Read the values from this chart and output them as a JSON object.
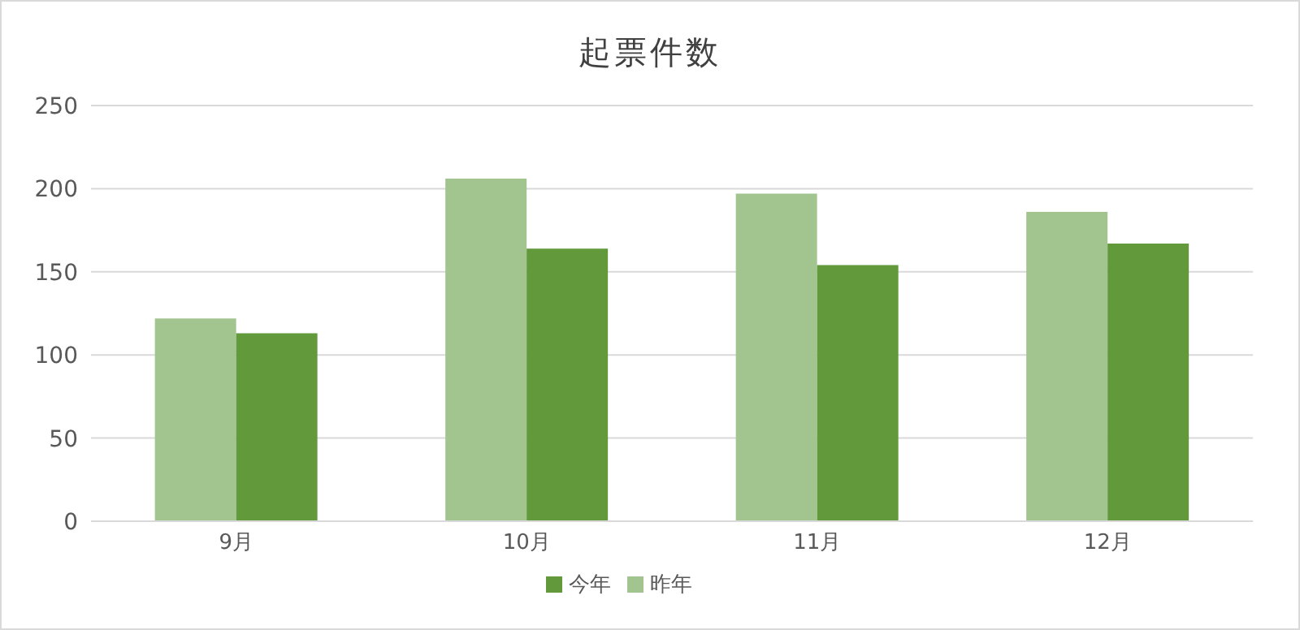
{
  "chart_data": {
    "type": "bar",
    "title": "起票件数",
    "categories": [
      "9月",
      "10月",
      "11月",
      "12月"
    ],
    "series": [
      {
        "name": "昨年",
        "color": "#a2c590",
        "values": [
          122,
          206,
          197,
          186
        ]
      },
      {
        "name": "今年",
        "color": "#61993b",
        "values": [
          113,
          164,
          154,
          167
        ]
      }
    ],
    "ylim": [
      0,
      250
    ],
    "yticks": [
      0,
      50,
      100,
      150,
      200,
      250
    ],
    "grid": "y",
    "legend": "bottom"
  }
}
